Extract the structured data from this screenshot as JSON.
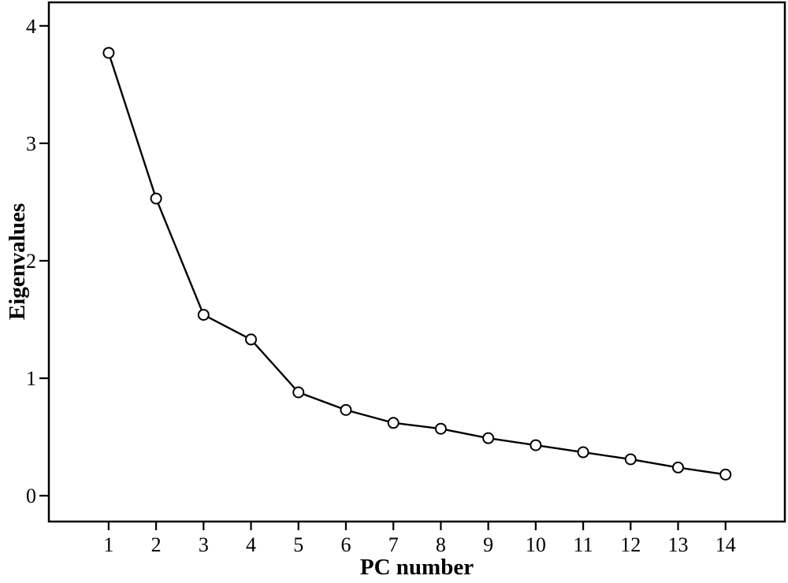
{
  "figure": {
    "background_color": "#ffffff",
    "frame_color": "#000000",
    "line_color": "#000000",
    "marker_fill_color": "#ffffff",
    "marker_stroke_color": "#000000"
  },
  "chart_data": {
    "type": "line",
    "title": "",
    "xlabel": "PC number",
    "ylabel": "Eigenvalues",
    "x": [
      1,
      2,
      3,
      4,
      5,
      6,
      7,
      8,
      9,
      10,
      11,
      12,
      13,
      14
    ],
    "values": [
      3.77,
      2.53,
      1.54,
      1.33,
      0.88,
      0.73,
      0.62,
      0.57,
      0.49,
      0.43,
      0.37,
      0.31,
      0.24,
      0.18
    ],
    "series_name": "Eigenvalues",
    "x_tick_labels": [
      "1",
      "2",
      "3",
      "4",
      "5",
      "6",
      "7",
      "8",
      "9",
      "10",
      "11",
      "12",
      "13",
      "14"
    ],
    "x_tick_values": [
      1,
      2,
      3,
      4,
      5,
      6,
      7,
      8,
      9,
      10,
      11,
      12,
      13,
      14
    ],
    "y_tick_labels": [
      "0",
      "1",
      "2",
      "3",
      "4"
    ],
    "y_tick_values": [
      0,
      1,
      2,
      3,
      4
    ],
    "xlim": [
      -0.26,
      15.25
    ],
    "ylim": [
      -0.22,
      4.2
    ],
    "grid": false,
    "legend": "none",
    "marker": "open-circle"
  }
}
